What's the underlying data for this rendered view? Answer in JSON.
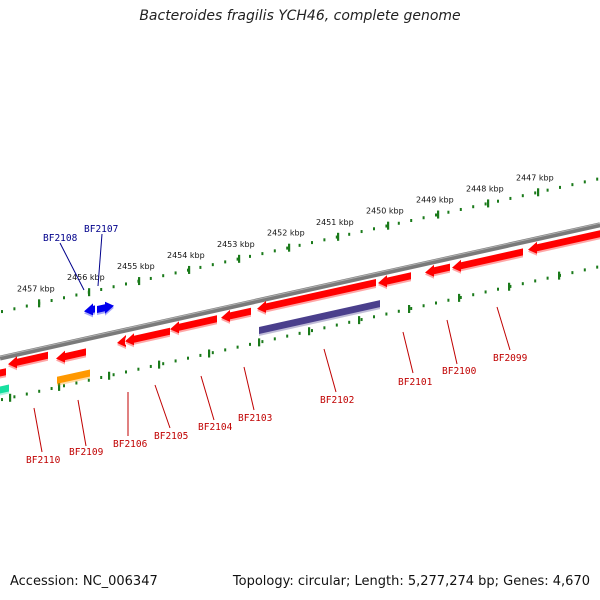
{
  "title": "Bacteroides fragilis YCH46, complete genome",
  "footer": {
    "accession": "Accession: NC_006347",
    "summary": "Topology: circular; Length: 5,277,274 bp; Genes: 4,670"
  },
  "colors": {
    "backbone": "#7a7a7a",
    "tick": "#1a7a1a",
    "gene_red": "#ff0000",
    "gene_blue": "#0000ee",
    "gene_purple": "#4a3f8c",
    "gene_orange": "#ff9900",
    "gene_teal": "#18e0a0",
    "label_red": "#c00000",
    "label_blue": "#00008b"
  },
  "kbp_labels": [
    "2447 kbp",
    "2448 kbp",
    "2449 kbp",
    "2450 kbp",
    "2451 kbp",
    "2452 kbp",
    "2453 kbp",
    "2454 kbp",
    "2455 kbp",
    "2456 kbp",
    "2457 kbp"
  ],
  "genes": [
    {
      "name": "BF2110",
      "color": "red"
    },
    {
      "name": "BF2109",
      "color": "red"
    },
    {
      "name": "BF2108",
      "color": "blue"
    },
    {
      "name": "BF2107",
      "color": "blue"
    },
    {
      "name": "BF2106",
      "color": "red"
    },
    {
      "name": "BF2105",
      "color": "red"
    },
    {
      "name": "BF2104",
      "color": "red"
    },
    {
      "name": "BF2103",
      "color": "red"
    },
    {
      "name": "BF2102",
      "color": "red"
    },
    {
      "name": "BF2101",
      "color": "red"
    },
    {
      "name": "BF2100",
      "color": "red"
    },
    {
      "name": "BF2099",
      "color": "red"
    }
  ]
}
